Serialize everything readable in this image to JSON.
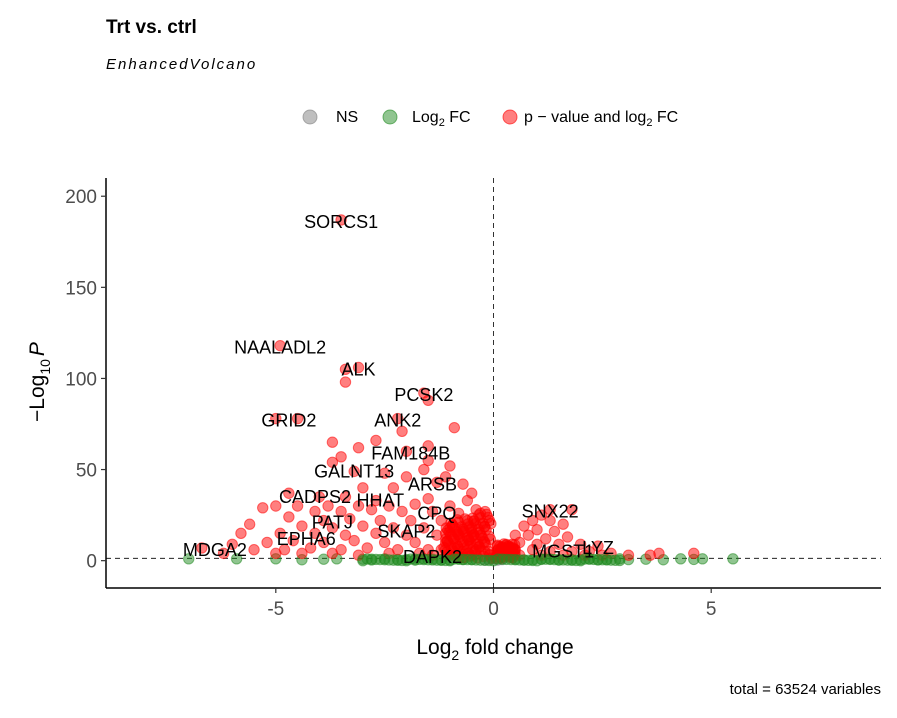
{
  "chart_data": {
    "type": "scatter",
    "title": "Trt vs. ctrl",
    "subtitle": "EnhancedVolcano",
    "caption": "total = 63524 variables",
    "xlabel": {
      "main": "Log",
      "sub": "2",
      "rest": " fold change"
    },
    "ylabel": {
      "pre": "−Log",
      "sub": "10",
      "italic": "P"
    },
    "xlim": [
      -8.9,
      8.9
    ],
    "ylim": [
      -15,
      210
    ],
    "x_ticks": [
      -5,
      0,
      5
    ],
    "x_tick_labels": [
      "-5",
      "0",
      "5"
    ],
    "y_ticks": [
      0,
      50,
      100,
      150,
      200
    ],
    "y_tick_labels": [
      "0",
      "50",
      "100",
      "150",
      "200"
    ],
    "thresholds": {
      "x": [
        0
      ],
      "y": [
        1.3
      ]
    },
    "grid": false,
    "legend_position": "top",
    "legend": [
      {
        "key": "ns",
        "label_parts": [
          "NS"
        ]
      },
      {
        "key": "fc",
        "label_parts": [
          "Log",
          "2",
          " FC"
        ]
      },
      {
        "key": "pfc",
        "label_parts": [
          "p − value and log",
          "2",
          " FC"
        ]
      }
    ],
    "colors": {
      "ns": "#808080",
      "fc": "#228b22",
      "pfc": "#ff0000"
    },
    "labeled_points": [
      {
        "gene": "SORCS1",
        "x": -3.5,
        "y": 187
      },
      {
        "gene": "NAALADL2",
        "x": -4.9,
        "y": 118
      },
      {
        "gene": "ALK",
        "x": -3.1,
        "y": 106
      },
      {
        "gene": "PCSK2",
        "x": -1.6,
        "y": 92
      },
      {
        "gene": "GRID2",
        "x": -4.7,
        "y": 78
      },
      {
        "gene": "ANK2",
        "x": -2.2,
        "y": 78
      },
      {
        "gene": "FAM184B",
        "x": -1.9,
        "y": 60
      },
      {
        "gene": "GALNT13",
        "x": -3.2,
        "y": 50
      },
      {
        "gene": "ARSB",
        "x": -1.4,
        "y": 43
      },
      {
        "gene": "CADPS2",
        "x": -4.1,
        "y": 36
      },
      {
        "gene": "HHAT",
        "x": -2.6,
        "y": 34
      },
      {
        "gene": "PATJ",
        "x": -3.7,
        "y": 22
      },
      {
        "gene": "CPQ",
        "x": -1.3,
        "y": 27
      },
      {
        "gene": "SKAP2",
        "x": -2.0,
        "y": 17
      },
      {
        "gene": "SNX22",
        "x": 1.3,
        "y": 28
      },
      {
        "gene": "EPHA6",
        "x": -4.3,
        "y": 13
      },
      {
        "gene": "MDGA2",
        "x": -6.4,
        "y": 7
      },
      {
        "gene": "DAPK2",
        "x": -1.4,
        "y": 3
      },
      {
        "gene": "MGST1",
        "x": 1.6,
        "y": 6
      },
      {
        "gene": "LYZ",
        "x": 2.4,
        "y": 8
      }
    ],
    "points": {
      "pfc": [
        [
          -3.5,
          187
        ],
        [
          -4.9,
          118
        ],
        [
          -3.1,
          106
        ],
        [
          -3.4,
          105
        ],
        [
          -3.4,
          98
        ],
        [
          -1.6,
          92
        ],
        [
          -1.5,
          88
        ],
        [
          -5.0,
          78
        ],
        [
          -4.5,
          78
        ],
        [
          -2.2,
          78
        ],
        [
          -0.9,
          73
        ],
        [
          -2.1,
          71
        ],
        [
          -3.7,
          65
        ],
        [
          -2.7,
          66
        ],
        [
          -3.5,
          57
        ],
        [
          -3.1,
          62
        ],
        [
          -2.0,
          60
        ],
        [
          -1.5,
          63
        ],
        [
          -1.0,
          52
        ],
        [
          -1.5,
          55
        ],
        [
          -3.7,
          54
        ],
        [
          -3.2,
          49
        ],
        [
          -2.5,
          48
        ],
        [
          -1.6,
          50
        ],
        [
          -1.1,
          46
        ],
        [
          -2.0,
          46
        ],
        [
          -1.3,
          43
        ],
        [
          -3.0,
          40
        ],
        [
          -2.3,
          40
        ],
        [
          -0.7,
          42
        ],
        [
          -0.5,
          37
        ],
        [
          -4.7,
          37
        ],
        [
          -4.0,
          35
        ],
        [
          -3.4,
          35
        ],
        [
          -2.7,
          33
        ],
        [
          -1.5,
          34
        ],
        [
          -0.6,
          33
        ],
        [
          -4.5,
          30
        ],
        [
          -3.8,
          30
        ],
        [
          -3.1,
          30
        ],
        [
          -2.4,
          30
        ],
        [
          -1.8,
          31
        ],
        [
          -1.0,
          30
        ],
        [
          -5.0,
          30
        ],
        [
          -5.3,
          29
        ],
        [
          -4.1,
          27
        ],
        [
          -3.5,
          27
        ],
        [
          -2.8,
          28
        ],
        [
          -2.1,
          27
        ],
        [
          -1.4,
          27
        ],
        [
          -0.8,
          26
        ],
        [
          -0.3,
          26
        ],
        [
          -4.7,
          24
        ],
        [
          -3.9,
          22
        ],
        [
          -3.3,
          23
        ],
        [
          -2.6,
          22
        ],
        [
          -1.9,
          22
        ],
        [
          -1.2,
          22
        ],
        [
          -0.6,
          22
        ],
        [
          -5.6,
          20
        ],
        [
          -4.4,
          19
        ],
        [
          -3.7,
          18
        ],
        [
          -3.0,
          19
        ],
        [
          -2.3,
          18
        ],
        [
          -1.6,
          18
        ],
        [
          -1.0,
          18
        ],
        [
          -0.5,
          18
        ],
        [
          -5.8,
          15
        ],
        [
          -4.9,
          15
        ],
        [
          -4.1,
          15
        ],
        [
          -3.4,
          14
        ],
        [
          -2.7,
          15
        ],
        [
          -2.0,
          14
        ],
        [
          -1.3,
          14
        ],
        [
          -0.8,
          14
        ],
        [
          -0.3,
          14
        ],
        [
          -6.0,
          9
        ],
        [
          -5.2,
          10
        ],
        [
          -4.6,
          11
        ],
        [
          -3.9,
          10
        ],
        [
          -3.2,
          11
        ],
        [
          -2.5,
          10
        ],
        [
          -1.8,
          10
        ],
        [
          -1.1,
          10
        ],
        [
          -0.6,
          11
        ],
        [
          -0.2,
          10
        ],
        [
          -6.7,
          7
        ],
        [
          -5.5,
          6
        ],
        [
          -4.8,
          6
        ],
        [
          -4.2,
          7
        ],
        [
          -3.5,
          6
        ],
        [
          -2.9,
          7
        ],
        [
          -2.2,
          6
        ],
        [
          -1.5,
          6
        ],
        [
          -0.9,
          7
        ],
        [
          -0.4,
          6
        ],
        [
          -6.2,
          4
        ],
        [
          -5.0,
          4
        ],
        [
          -4.4,
          4
        ],
        [
          -3.7,
          4
        ],
        [
          -3.1,
          3
        ],
        [
          -2.4,
          4
        ],
        [
          -1.7,
          4
        ],
        [
          -1.0,
          3
        ],
        [
          -0.5,
          3
        ],
        [
          -0.2,
          5
        ],
        [
          -0.3,
          20
        ],
        [
          -0.4,
          28
        ],
        [
          -0.7,
          5
        ],
        [
          -0.9,
          12
        ],
        [
          -1.2,
          6
        ],
        [
          -1.4,
          3
        ],
        [
          -0.6,
          8
        ],
        [
          -0.8,
          3
        ],
        [
          -1.1,
          15
        ],
        [
          -0.5,
          13
        ],
        [
          -0.4,
          9
        ],
        [
          -0.7,
          16
        ],
        [
          1.3,
          28
        ],
        [
          1.8,
          28
        ],
        [
          0.9,
          22
        ],
        [
          1.3,
          22
        ],
        [
          1.6,
          20
        ],
        [
          1.0,
          17
        ],
        [
          1.4,
          16
        ],
        [
          0.8,
          14
        ],
        [
          1.2,
          12
        ],
        [
          1.7,
          13
        ],
        [
          0.6,
          10
        ],
        [
          1.0,
          9
        ],
        [
          1.5,
          9
        ],
        [
          2.0,
          9
        ],
        [
          0.5,
          6
        ],
        [
          0.9,
          6
        ],
        [
          1.3,
          5
        ],
        [
          1.8,
          5
        ],
        [
          2.2,
          5
        ],
        [
          0.6,
          3
        ],
        [
          1.1,
          3
        ],
        [
          1.6,
          3
        ],
        [
          2.1,
          3
        ],
        [
          2.4,
          8
        ],
        [
          2.5,
          3
        ],
        [
          2.7,
          4
        ],
        [
          3.1,
          3
        ],
        [
          3.6,
          3
        ],
        [
          3.8,
          4
        ],
        [
          4.6,
          4
        ],
        [
          0.7,
          19
        ],
        [
          1.1,
          25
        ],
        [
          0.5,
          14
        ]
      ],
      "fc": [
        [
          -7.0,
          1
        ],
        [
          -5.9,
          1
        ],
        [
          -5.0,
          1
        ],
        [
          -3.6,
          1
        ],
        [
          -3.0,
          0.8
        ],
        [
          -2.5,
          1
        ],
        [
          -2.0,
          0.6
        ],
        [
          -1.6,
          1
        ],
        [
          -1.2,
          0.5
        ],
        [
          -0.8,
          1
        ],
        [
          -0.5,
          0.7
        ],
        [
          0.5,
          0.8
        ],
        [
          0.9,
          0.5
        ],
        [
          1.3,
          0.9
        ],
        [
          1.8,
          0.6
        ],
        [
          2.2,
          1
        ],
        [
          2.6,
          0.7
        ],
        [
          2.9,
          1
        ],
        [
          3.1,
          0.6
        ],
        [
          4.3,
          1
        ],
        [
          4.6,
          0.7
        ],
        [
          4.8,
          1
        ],
        [
          5.5,
          1
        ],
        [
          -4.4,
          0.5
        ],
        [
          -3.9,
          0.8
        ],
        [
          -2.8,
          0.4
        ],
        [
          -2.2,
          0.7
        ],
        [
          -1.8,
          0.3
        ],
        [
          -1.4,
          0.9
        ],
        [
          -1.0,
          0.4
        ],
        [
          -0.7,
          0.6
        ],
        [
          0.7,
          0.4
        ],
        [
          1.1,
          0.7
        ],
        [
          1.5,
          0.3
        ],
        [
          2.0,
          0.6
        ],
        [
          2.4,
          0.4
        ],
        [
          3.5,
          0.8
        ],
        [
          3.9,
          0.5
        ]
      ],
      "ns": [
        [
          -0.2,
          0.4
        ],
        [
          0.1,
          0.3
        ],
        [
          -0.1,
          0.8
        ],
        [
          0.2,
          0.6
        ],
        [
          0.0,
          1.0
        ]
      ]
    }
  }
}
